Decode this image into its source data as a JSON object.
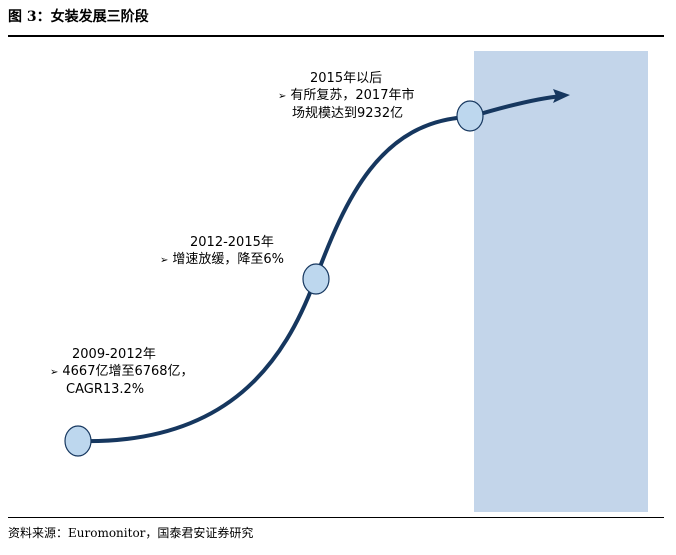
{
  "figure": {
    "title": "图 3：女装发展三阶段",
    "source": "资料来源：Euromonitor，国泰君安证券研究"
  },
  "stages": [
    {
      "period": "2009-2012年",
      "bullet_lines": [
        "4667亿增至6768亿，",
        "CAGR13.2%"
      ]
    },
    {
      "period": "2012-2015年",
      "bullet_lines": [
        "增速放缓，降至6%"
      ]
    },
    {
      "period": "2015年以后",
      "bullet_lines": [
        "有所复苏，2017年市",
        "场规模达到9232亿"
      ]
    }
  ],
  "colors": {
    "curve": "#16375f",
    "node_fill": "#bdd7ee",
    "node_stroke": "#16375f",
    "highlight_band": "#c3d5ea"
  },
  "icons": {
    "bullet": "arrow-bullet-icon"
  }
}
